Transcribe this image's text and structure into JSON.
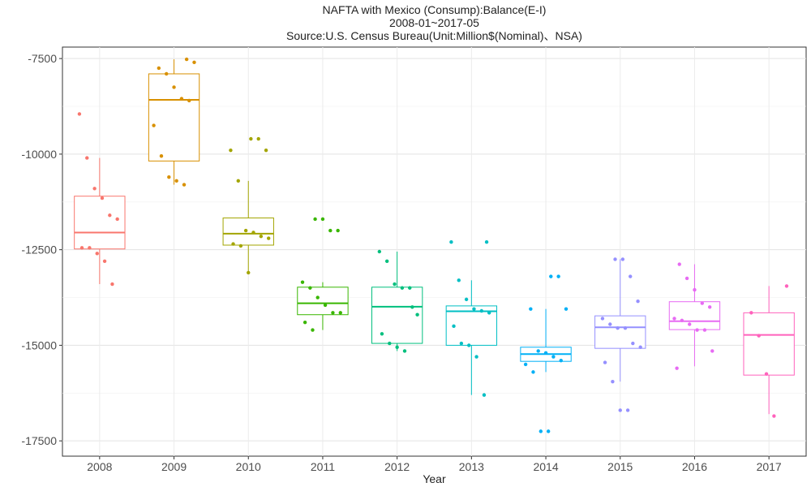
{
  "chart_data": {
    "type": "boxplot",
    "title_lines": [
      "NAFTA with Mexico (Consump):Balance(E-I)",
      "2008-01~2017-05",
      "Source:U.S. Census Bureau(Unit:Million$(Nominal)、NSA)"
    ],
    "xlabel": "Year",
    "ylabel": "",
    "ylim": [
      -17900,
      -7200
    ],
    "yticks": [
      -7500,
      -10000,
      -12500,
      -15000,
      -17500
    ],
    "ytick_labels": [
      "-7500",
      "-10000",
      "-12500",
      "-15000",
      "-17500"
    ],
    "grid": true,
    "categories": [
      "2008",
      "2009",
      "2010",
      "2011",
      "2012",
      "2013",
      "2014",
      "2015",
      "2016",
      "2017"
    ],
    "colors": [
      "#F8766D",
      "#D89000",
      "#A3A500",
      "#39B600",
      "#00BF7D",
      "#00BFC4",
      "#00B0F6",
      "#9590FF",
      "#E76BF3",
      "#FF62BC"
    ],
    "boxes": [
      {
        "year": "2008",
        "whisker_low": -13400,
        "q1": -12480,
        "median": -12050,
        "q3": -11100,
        "whisker_high": -10100,
        "points": [
          -8950,
          -10100,
          -10900,
          -11150,
          -11600,
          -11700,
          -12450,
          -12450,
          -12600,
          -12800,
          -13400
        ]
      },
      {
        "year": "2009",
        "whisker_low": -10800,
        "q1": -10180,
        "median": -8580,
        "q3": -7900,
        "whisker_high": -7520,
        "points": [
          -7520,
          -7600,
          -7750,
          -7900,
          -8250,
          -8550,
          -8600,
          -9250,
          -10050,
          -10600,
          -10700,
          -10800
        ]
      },
      {
        "year": "2010",
        "whisker_low": -13100,
        "q1": -12380,
        "median": -12080,
        "q3": -11670,
        "whisker_high": -10700,
        "points": [
          -9600,
          -9600,
          -9900,
          -9900,
          -10700,
          -12000,
          -12050,
          -12150,
          -12200,
          -12350,
          -12400,
          -13100
        ]
      },
      {
        "year": "2011",
        "whisker_low": -14600,
        "q1": -14200,
        "median": -13900,
        "q3": -13480,
        "whisker_high": -13350,
        "points": [
          -11700,
          -11700,
          -12000,
          -12000,
          -13350,
          -13500,
          -13750,
          -13950,
          -14150,
          -14150,
          -14400,
          -14600
        ]
      },
      {
        "year": "2012",
        "whisker_low": -15150,
        "q1": -14950,
        "median": -13990,
        "q3": -13480,
        "whisker_high": -12550,
        "points": [
          -12550,
          -12800,
          -13400,
          -13500,
          -13500,
          -14200,
          -14700,
          -14950,
          -15050,
          -15150,
          -14000
        ]
      },
      {
        "year": "2013",
        "whisker_low": -16300,
        "q1": -15000,
        "median": -14110,
        "q3": -13970,
        "whisker_high": -13300,
        "points": [
          -12300,
          -12300,
          -13300,
          -13800,
          -14050,
          -14100,
          -14150,
          -14500,
          -14950,
          -15000,
          -15300,
          -16300
        ]
      },
      {
        "year": "2014",
        "whisker_low": -15700,
        "q1": -15420,
        "median": -15230,
        "q3": -15050,
        "whisker_high": -14050,
        "points": [
          -13200,
          -13200,
          -14050,
          -14050,
          -15150,
          -15200,
          -15300,
          -15400,
          -15500,
          -15700,
          -17250,
          -17250
        ]
      },
      {
        "year": "2015",
        "whisker_low": -15950,
        "q1": -15080,
        "median": -14530,
        "q3": -14230,
        "whisker_high": -12750,
        "points": [
          -12750,
          -12750,
          -13200,
          -13850,
          -14300,
          -14450,
          -14550,
          -14550,
          -14950,
          -15050,
          -15450,
          -15950,
          -16700,
          -16700
        ]
      },
      {
        "year": "2016",
        "whisker_low": -15550,
        "q1": -14590,
        "median": -14370,
        "q3": -13860,
        "whisker_high": -12880,
        "points": [
          -12880,
          -13250,
          -13550,
          -13900,
          -14000,
          -14300,
          -14350,
          -14450,
          -14600,
          -14600,
          -15150,
          -15600
        ]
      },
      {
        "year": "2017",
        "whisker_low": -16800,
        "q1": -15780,
        "median": -14730,
        "q3": -14150,
        "whisker_high": -13450,
        "points": [
          -13450,
          -14150,
          -14750,
          -15750,
          -16850
        ]
      }
    ]
  }
}
